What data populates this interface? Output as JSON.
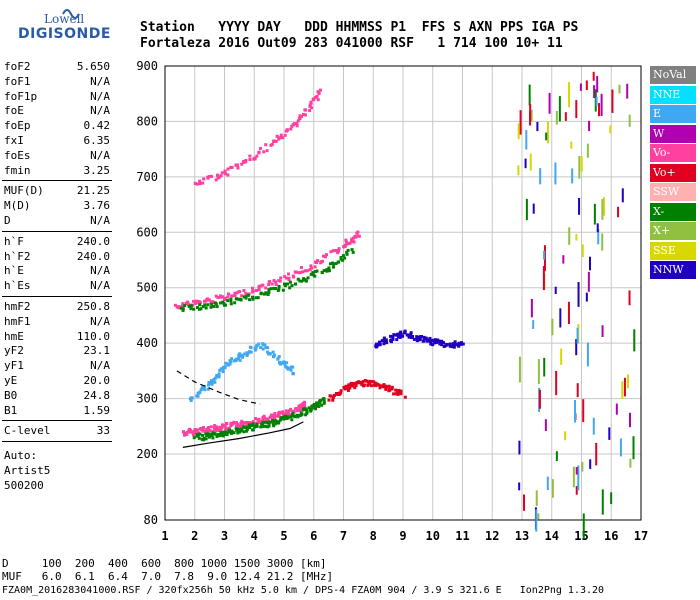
{
  "logo": {
    "line1": "Lowell",
    "line2": "DIGISONDE"
  },
  "header": {
    "line1": "Station   YYYY DAY   DDD HHMMSS P1  FFS S AXN PPS IGA PS",
    "line2": "Fortaleza 2016 Out09 283 041000 RSF   1 714 100 10+ 11"
  },
  "params": {
    "group1": [
      {
        "k": "foF2",
        "v": "5.650"
      },
      {
        "k": "foF1",
        "v": "N/A"
      },
      {
        "k": "foF1p",
        "v": "N/A"
      },
      {
        "k": "foE",
        "v": "N/A"
      },
      {
        "k": "foEp",
        "v": "0.42"
      },
      {
        "k": "fxI",
        "v": "6.35"
      },
      {
        "k": "foEs",
        "v": "N/A"
      },
      {
        "k": "fmin",
        "v": "3.25"
      }
    ],
    "group2": [
      {
        "k": "MUF(D)",
        "v": "21.25"
      },
      {
        "k": "M(D)",
        "v": "3.76"
      },
      {
        "k": "D",
        "v": "N/A"
      }
    ],
    "group3": [
      {
        "k": "h`F",
        "v": "240.0"
      },
      {
        "k": "h`F2",
        "v": "240.0"
      },
      {
        "k": "h`E",
        "v": "N/A"
      },
      {
        "k": "h`Es",
        "v": "N/A"
      }
    ],
    "group4": [
      {
        "k": "hmF2",
        "v": "250.8"
      },
      {
        "k": "hmF1",
        "v": "N/A"
      },
      {
        "k": "hmE",
        "v": "110.0"
      },
      {
        "k": "yF2",
        "v": "23.1"
      },
      {
        "k": "yF1",
        "v": "N/A"
      },
      {
        "k": "yE",
        "v": "20.0"
      },
      {
        "k": "B0",
        "v": "24.8"
      },
      {
        "k": "B1",
        "v": "1.59"
      }
    ],
    "clevel": {
      "k": "C-level",
      "v": "33"
    },
    "auto": [
      "Auto:",
      "Artist5",
      "500200"
    ]
  },
  "legend": [
    {
      "label": "NoVal",
      "color": "#808080"
    },
    {
      "label": "NNE",
      "color": "#00e0ff"
    },
    {
      "label": "E",
      "color": "#40a8f0"
    },
    {
      "label": "W",
      "color": "#b000b0"
    },
    {
      "label": "Vo-",
      "color": "#ff40a0"
    },
    {
      "label": "Vo+",
      "color": "#e00020"
    },
    {
      "label": "SSW",
      "color": "#ffb0b0"
    },
    {
      "label": "X-",
      "color": "#008000"
    },
    {
      "label": "X+",
      "color": "#90c040"
    },
    {
      "label": "SSE",
      "color": "#d8d800"
    },
    {
      "label": "NNW",
      "color": "#2000c0"
    }
  ],
  "footer": {
    "line1": "D     100  200  400  600  800 1000 1500 3000 [km]",
    "line2": "MUF   6.0  6.1  6.4  7.0  7.8  9.0 12.4 21.2 [MHz]",
    "line3": "FZA0M_2016283041000.RSF / 320fx256h 50 kHz 5.0 km / DPS-4 FZA0M 904 / 3.9 S 321.6 E   Ion2Png 1.3.20"
  },
  "chart_data": {
    "type": "scatter",
    "xlim": [
      1,
      17
    ],
    "ylim": [
      80,
      900
    ],
    "x_ticks": [
      "1",
      "2",
      "3",
      "4",
      "5",
      "6",
      "7",
      "8",
      "9",
      "10",
      "11",
      "12",
      "13",
      "14",
      "15",
      "16",
      "17"
    ],
    "y_ticks": [
      "80",
      "200",
      "300",
      "400",
      "500",
      "600",
      "700",
      "800",
      "900"
    ],
    "y_tick_values": [
      80,
      200,
      300,
      400,
      500,
      600,
      700,
      800,
      900
    ],
    "grid": true,
    "traces": [
      {
        "name": "O-trace F2 (1-hop)",
        "color_key": "Vo-",
        "points": [
          [
            1.6,
            240
          ],
          [
            2.0,
            244
          ],
          [
            2.5,
            248
          ],
          [
            3.0,
            252
          ],
          [
            3.5,
            256
          ],
          [
            4.0,
            262
          ],
          [
            4.5,
            268
          ],
          [
            5.0,
            276
          ],
          [
            5.5,
            285
          ],
          [
            5.65,
            292
          ]
        ]
      },
      {
        "name": "X-trace F2 (1-hop)",
        "color_key": "X-",
        "points": [
          [
            2.0,
            232
          ],
          [
            2.5,
            236
          ],
          [
            3.0,
            240
          ],
          [
            3.5,
            246
          ],
          [
            4.0,
            252
          ],
          [
            4.5,
            258
          ],
          [
            5.0,
            266
          ],
          [
            5.5,
            276
          ],
          [
            6.0,
            288
          ],
          [
            6.35,
            300
          ]
        ]
      },
      {
        "name": "2-hop O",
        "color_key": "Vo-",
        "points": [
          [
            1.3,
            470
          ],
          [
            2.0,
            475
          ],
          [
            3.0,
            485
          ],
          [
            4.0,
            500
          ],
          [
            5.0,
            520
          ],
          [
            6.0,
            545
          ],
          [
            7.0,
            580
          ],
          [
            7.5,
            600
          ]
        ]
      },
      {
        "name": "2-hop X",
        "color_key": "X-",
        "points": [
          [
            1.5,
            465
          ],
          [
            2.5,
            470
          ],
          [
            3.5,
            480
          ],
          [
            4.5,
            495
          ],
          [
            5.5,
            515
          ],
          [
            6.5,
            540
          ],
          [
            7.3,
            570
          ]
        ]
      },
      {
        "name": "3-hop",
        "color_key": "Vo-",
        "points": [
          [
            2.0,
            690
          ],
          [
            3.0,
            710
          ],
          [
            4.0,
            740
          ],
          [
            5.0,
            780
          ],
          [
            5.7,
            820
          ],
          [
            6.2,
            860
          ]
        ]
      },
      {
        "name": "Spread F (E)",
        "color_key": "E",
        "points": [
          [
            1.8,
            300
          ],
          [
            2.5,
            330
          ],
          [
            3.0,
            360
          ],
          [
            3.5,
            380
          ],
          [
            4.2,
            400
          ],
          [
            4.8,
            370
          ],
          [
            5.3,
            350
          ]
        ]
      },
      {
        "name": "Spread F (NNW)",
        "color_key": "NNW",
        "points": [
          [
            8.0,
            400
          ],
          [
            8.5,
            410
          ],
          [
            9.0,
            420
          ],
          [
            9.5,
            410
          ],
          [
            10.0,
            405
          ],
          [
            10.5,
            400
          ],
          [
            11.0,
            400
          ]
        ]
      },
      {
        "name": "Spread F (Vo+)",
        "color_key": "Vo+",
        "points": [
          [
            6.5,
            300
          ],
          [
            7.0,
            320
          ],
          [
            7.5,
            330
          ],
          [
            8.0,
            330
          ],
          [
            8.5,
            320
          ],
          [
            9.0,
            310
          ]
        ]
      }
    ],
    "profile_line": {
      "color": "#000000",
      "points": [
        [
          1.6,
          212
        ],
        [
          2.5,
          220
        ],
        [
          3.5,
          228
        ],
        [
          4.5,
          238
        ],
        [
          5.2,
          246
        ],
        [
          5.65,
          258
        ]
      ]
    },
    "dashed_line": {
      "color": "#000000",
      "points": [
        [
          1.4,
          350
        ],
        [
          2.0,
          330
        ],
        [
          2.8,
          312
        ],
        [
          3.5,
          298
        ],
        [
          4.2,
          290
        ]
      ]
    }
  }
}
